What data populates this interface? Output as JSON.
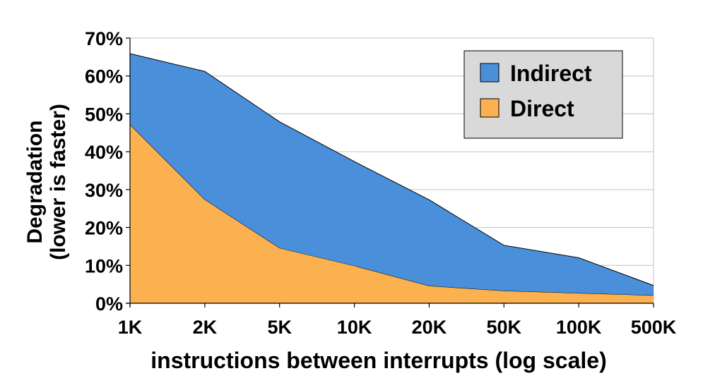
{
  "chart_data": {
    "type": "area",
    "stacked": true,
    "title": "",
    "xlabel": "instructions between interrupts (log scale)",
    "ylabel_lines": [
      "Degradation",
      "(lower is faster)"
    ],
    "categories": [
      "1K",
      "2K",
      "5K",
      "10K",
      "20K",
      "50K",
      "100K",
      "500K"
    ],
    "ylim": [
      0,
      70
    ],
    "yticks": [
      0,
      10,
      20,
      30,
      40,
      50,
      60,
      70
    ],
    "ytick_labels": [
      "0%",
      "10%",
      "20%",
      "30%",
      "40%",
      "50%",
      "60%",
      "70%"
    ],
    "grid": true,
    "legend_position": "top-right",
    "series": [
      {
        "name": "Direct",
        "color": "#FBB150",
        "values": [
          47.2,
          27.4,
          14.6,
          9.9,
          4.6,
          3.3,
          2.7,
          2.1
        ]
      },
      {
        "name": "Indirect",
        "color": "#4A8FDA",
        "values": [
          18.7,
          33.8,
          33.3,
          27.5,
          22.7,
          12.0,
          9.3,
          2.6
        ]
      }
    ],
    "legend_order": [
      "Indirect",
      "Direct"
    ]
  }
}
